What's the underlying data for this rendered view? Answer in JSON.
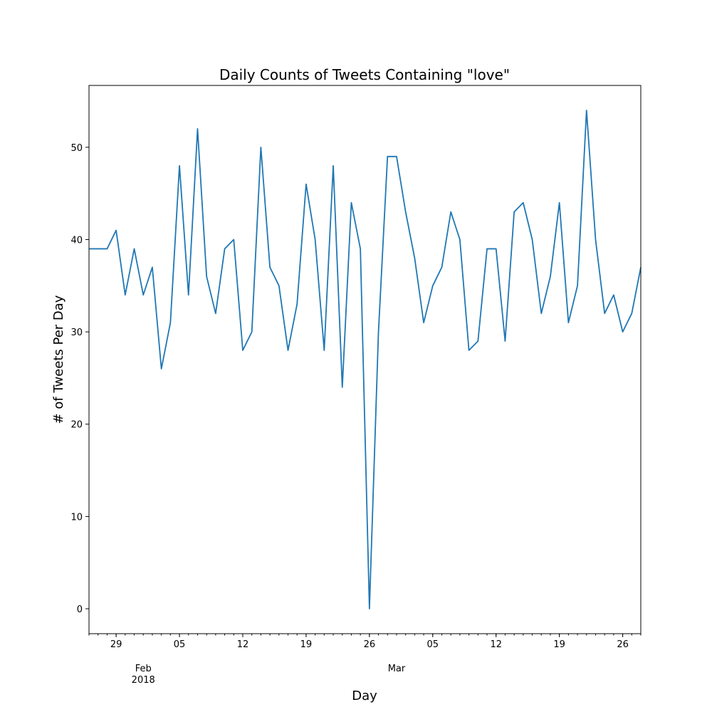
{
  "chart_data": {
    "type": "line",
    "title": "Daily Counts of Tweets Containing \"love\"",
    "xlabel": "Day",
    "ylabel": "# of Tweets Per Day",
    "x": [
      "2018-01-26",
      "2018-01-27",
      "2018-01-28",
      "2018-01-29",
      "2018-01-30",
      "2018-01-31",
      "2018-02-01",
      "2018-02-02",
      "2018-02-03",
      "2018-02-04",
      "2018-02-05",
      "2018-02-06",
      "2018-02-07",
      "2018-02-08",
      "2018-02-09",
      "2018-02-10",
      "2018-02-11",
      "2018-02-12",
      "2018-02-13",
      "2018-02-14",
      "2018-02-15",
      "2018-02-16",
      "2018-02-17",
      "2018-02-18",
      "2018-02-19",
      "2018-02-20",
      "2018-02-21",
      "2018-02-22",
      "2018-02-23",
      "2018-02-24",
      "2018-02-25",
      "2018-02-26",
      "2018-02-27",
      "2018-02-28",
      "2018-03-01",
      "2018-03-02",
      "2018-03-03",
      "2018-03-04",
      "2018-03-05",
      "2018-03-06",
      "2018-03-07",
      "2018-03-08",
      "2018-03-09",
      "2018-03-10",
      "2018-03-11",
      "2018-03-12",
      "2018-03-13",
      "2018-03-14",
      "2018-03-15",
      "2018-03-16",
      "2018-03-17",
      "2018-03-18",
      "2018-03-19",
      "2018-03-20",
      "2018-03-21",
      "2018-03-22",
      "2018-03-23",
      "2018-03-24",
      "2018-03-25",
      "2018-03-26",
      "2018-03-27",
      "2018-03-28"
    ],
    "series": [
      {
        "values": [
          39,
          39,
          39,
          41,
          34,
          39,
          34,
          37,
          26,
          31,
          48,
          34,
          52,
          36,
          32,
          39,
          40,
          28,
          30,
          50,
          37,
          35,
          28,
          33,
          46,
          40,
          28,
          48,
          24,
          44,
          39,
          0,
          30,
          49,
          49,
          43,
          38,
          31,
          35,
          37,
          43,
          40,
          28,
          29,
          39,
          39,
          29,
          43,
          44,
          40,
          32,
          36,
          44,
          31,
          35,
          54,
          40,
          32,
          34,
          30,
          32,
          37
        ],
        "color": "#1f77b4"
      }
    ],
    "xlim": [
      "2018-01-26",
      "2018-03-28"
    ],
    "ylim": [
      -2.7,
      56.7
    ],
    "yticks": [
      0,
      10,
      20,
      30,
      40,
      50
    ],
    "ytick_labels": [
      "0",
      "10",
      "20",
      "30",
      "40",
      "50"
    ],
    "xticks": [
      {
        "date": "2018-01-29",
        "label": "29"
      },
      {
        "date": "2018-02-05",
        "label": "05"
      },
      {
        "date": "2018-02-12",
        "label": "12"
      },
      {
        "date": "2018-02-19",
        "label": "19"
      },
      {
        "date": "2018-02-26",
        "label": "26"
      },
      {
        "date": "2018-03-05",
        "label": "05"
      },
      {
        "date": "2018-03-12",
        "label": "12"
      },
      {
        "date": "2018-03-19",
        "label": "19"
      },
      {
        "date": "2018-03-26",
        "label": "26"
      }
    ],
    "month_labels": [
      {
        "date": "2018-02-01",
        "line1": "Feb",
        "line2": "2018"
      },
      {
        "date": "2018-03-01",
        "line1": "Mar",
        "line2": ""
      }
    ],
    "grid": false,
    "legend": "none"
  }
}
